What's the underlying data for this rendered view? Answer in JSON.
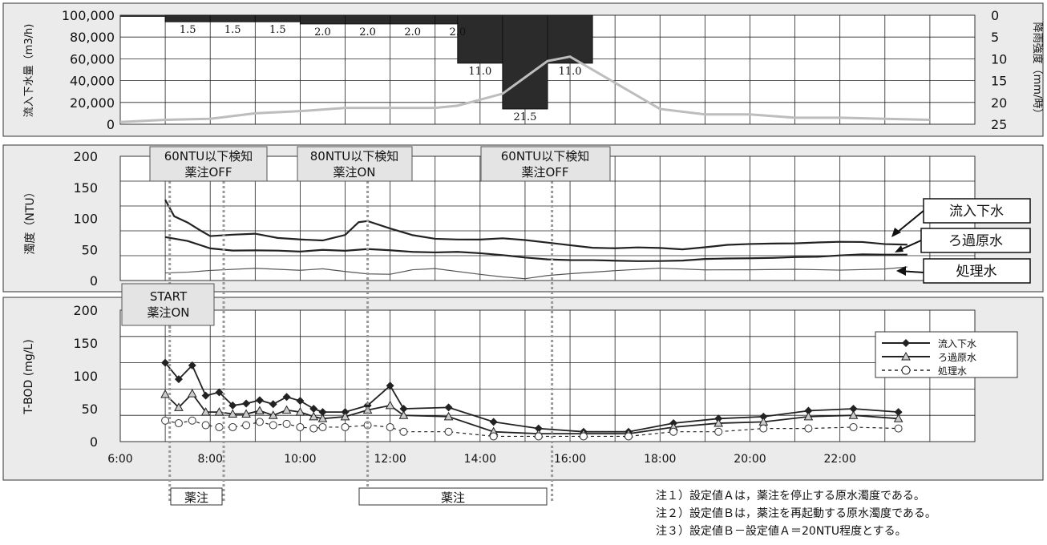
{
  "chart_data": [
    {
      "type": "bar",
      "panel": "rain-and-inflow",
      "ylabel_left": "流入下水量（m3/h)",
      "ylabel_right": "降雨強度（mm/時）",
      "left_ticks": [
        "100,000",
        "80,000",
        "60,000",
        "40,000",
        "20,000",
        "0"
      ],
      "right_ticks": [
        "0",
        "5",
        "10",
        "15",
        "20",
        "25"
      ],
      "ylim_left": [
        0,
        100000
      ],
      "ylim_right_inverted": [
        0,
        25
      ],
      "rain": {
        "x": [
          7.0,
          8.0,
          9.0,
          10.0,
          11.0,
          12.0,
          13.0,
          14.0,
          15.0,
          16.0
        ],
        "values": [
          1.5,
          1.5,
          1.5,
          2.0,
          2.0,
          2.0,
          2.0,
          11.0,
          21.5,
          11.0
        ],
        "labels": [
          "1.5",
          "1.5",
          "1.5",
          "2.0",
          "2.0",
          "2.0",
          "2.0",
          "11.0",
          "21.5",
          "11.0"
        ]
      },
      "inflow": {
        "x": [
          6.0,
          7.0,
          8.0,
          9.0,
          10.0,
          11.0,
          12.0,
          13.0,
          13.5,
          14.5,
          15.5,
          16.0,
          17.0,
          18.0,
          19.0,
          20.0,
          21.0,
          22.0,
          23.0,
          24.0
        ],
        "values": [
          2000,
          4000,
          5000,
          10000,
          12000,
          15000,
          15000,
          15000,
          17000,
          28000,
          58000,
          62000,
          38000,
          14000,
          9000,
          9000,
          6000,
          6000,
          5000,
          4000
        ]
      }
    },
    {
      "type": "line",
      "panel": "turbidity",
      "ylabel": "濁度（NTU）",
      "ylim": [
        0,
        200
      ],
      "yticks": [
        "200",
        "150",
        "100",
        "50",
        "0"
      ],
      "series": [
        {
          "name": "流入下水",
          "x": [
            7.0,
            7.2,
            7.5,
            7.8,
            8.0,
            8.5,
            9.0,
            9.5,
            10.0,
            10.5,
            11.0,
            11.3,
            11.5,
            12.0,
            12.5,
            13.0,
            13.5,
            14.0,
            14.5,
            15.0,
            15.5,
            16.0,
            16.5,
            17.0,
            17.5,
            18.0,
            18.5,
            19.0,
            19.5,
            20.0,
            20.5,
            21.0,
            21.5,
            22.0,
            22.5,
            23.0,
            23.5
          ],
          "values": [
            130,
            105,
            95,
            80,
            70,
            72,
            75,
            70,
            68,
            65,
            72,
            92,
            95,
            85,
            75,
            68,
            65,
            64,
            67,
            66,
            63,
            58,
            52,
            50,
            52,
            53,
            52,
            55,
            57,
            57,
            58,
            60,
            63,
            64,
            62,
            57,
            56
          ]
        },
        {
          "name": "ろ過原水",
          "x": [
            7.0,
            7.5,
            8.0,
            8.5,
            9.0,
            9.5,
            10.0,
            10.5,
            11.0,
            11.5,
            12.0,
            12.5,
            13.0,
            13.5,
            14.0,
            14.5,
            15.0,
            15.5,
            16.0,
            16.5,
            17.0,
            17.5,
            18.0,
            18.5,
            19.0,
            19.5,
            20.0,
            20.5,
            21.0,
            21.5,
            22.0,
            22.5,
            23.0,
            23.5
          ],
          "values": [
            70,
            62,
            50,
            48,
            50,
            50,
            47,
            48,
            46,
            50,
            50,
            48,
            46,
            45,
            42,
            40,
            38,
            36,
            34,
            32,
            30,
            30,
            32,
            34,
            36,
            35,
            34,
            35,
            38,
            40,
            42,
            42,
            40,
            40
          ]
        },
        {
          "name": "処理水",
          "x": [
            7.0,
            7.5,
            8.0,
            9.0,
            10.0,
            10.5,
            11.0,
            11.5,
            12.0,
            12.5,
            13.0,
            14.0,
            14.5,
            15.0,
            15.5,
            16.0,
            17.0,
            18.0,
            19.0,
            20.0,
            21.0,
            22.0,
            23.0,
            23.5
          ],
          "values": [
            12,
            15,
            18,
            20,
            15,
            17,
            14,
            12,
            12,
            18,
            18,
            8,
            5,
            4,
            10,
            12,
            15,
            18,
            16,
            18,
            20,
            18,
            18,
            20
          ]
        }
      ],
      "annotations": [
        {
          "line1": "60NTU以下検知",
          "line2": "薬注OFF",
          "x": 8.2
        },
        {
          "line1": "80NTU以下検知",
          "line2": "薬注ON",
          "x": 11.5
        },
        {
          "line1": "60NTU以下検知",
          "line2": "薬注OFF",
          "x": 15.6
        }
      ],
      "callouts": [
        "流入下水",
        "ろ過原水",
        "処理水"
      ]
    },
    {
      "type": "line",
      "panel": "bod",
      "ylabel": "T-BOD (mg/L)",
      "ylim": [
        0,
        200
      ],
      "yticks": [
        "200",
        "150",
        "100",
        "50",
        "0"
      ],
      "xticks": [
        "6:00",
        "8:00",
        "10:00",
        "12:00",
        "14:00",
        "16:00",
        "18:00",
        "20:00",
        "22:00"
      ],
      "series": [
        {
          "name": "流入下水",
          "x": [
            7.0,
            7.3,
            7.6,
            7.9,
            8.2,
            8.5,
            8.8,
            9.1,
            9.4,
            9.7,
            10.0,
            10.3,
            10.5,
            11.0,
            11.5,
            12.0,
            12.3,
            13.3,
            14.3,
            15.3,
            16.3,
            17.3,
            18.3,
            19.3,
            20.3,
            21.3,
            22.3,
            23.3
          ],
          "values": [
            120,
            95,
            116,
            70,
            75,
            55,
            58,
            63,
            57,
            68,
            62,
            50,
            45,
            45,
            55,
            85,
            50,
            52,
            30,
            20,
            15,
            15,
            28,
            35,
            38,
            47,
            50,
            45
          ]
        },
        {
          "name": "ろ過原水",
          "x": [
            7.0,
            7.3,
            7.6,
            7.9,
            8.2,
            8.5,
            8.8,
            9.1,
            9.4,
            9.7,
            10.0,
            10.3,
            10.5,
            11.0,
            11.5,
            12.0,
            12.3,
            13.3,
            14.3,
            15.3,
            16.3,
            17.3,
            18.3,
            19.3,
            20.3,
            21.3,
            22.3,
            23.3
          ],
          "values": [
            72,
            52,
            73,
            45,
            45,
            42,
            42,
            47,
            40,
            48,
            45,
            38,
            35,
            38,
            48,
            55,
            40,
            38,
            15,
            12,
            12,
            12,
            22,
            28,
            30,
            38,
            40,
            35
          ]
        },
        {
          "name": "処理水",
          "x": [
            7.0,
            7.3,
            7.6,
            7.9,
            8.2,
            8.5,
            8.8,
            9.1,
            9.4,
            9.7,
            10.0,
            10.3,
            10.5,
            11.0,
            11.5,
            12.0,
            12.3,
            13.3,
            14.3,
            15.3,
            16.3,
            17.3,
            18.3,
            19.3,
            20.3,
            21.3,
            22.3,
            23.3
          ],
          "values": [
            32,
            28,
            32,
            25,
            22,
            22,
            25,
            30,
            25,
            27,
            22,
            20,
            22,
            22,
            25,
            22,
            15,
            15,
            8,
            8,
            8,
            8,
            15,
            15,
            20,
            20,
            22,
            20
          ]
        }
      ],
      "legend": [
        "流入下水",
        "ろ過原水",
        "処理水"
      ],
      "start_label_1": "START",
      "start_label_2": "薬注ON"
    }
  ],
  "dosing_bars": [
    {
      "label": "薬注",
      "x_start": 7.1,
      "x_end": 8.3
    },
    {
      "label": "薬注",
      "x_start": 11.5,
      "x_end": 15.6
    }
  ],
  "notes": [
    "注１）設定値Ａは，薬注を停止する原水濁度である。",
    "注２）設定値Ｂは，薬注を再起動する原水濁度である。",
    "注３）設定値Ｂ－設定値Ａ＝20NTU程度とする。"
  ]
}
